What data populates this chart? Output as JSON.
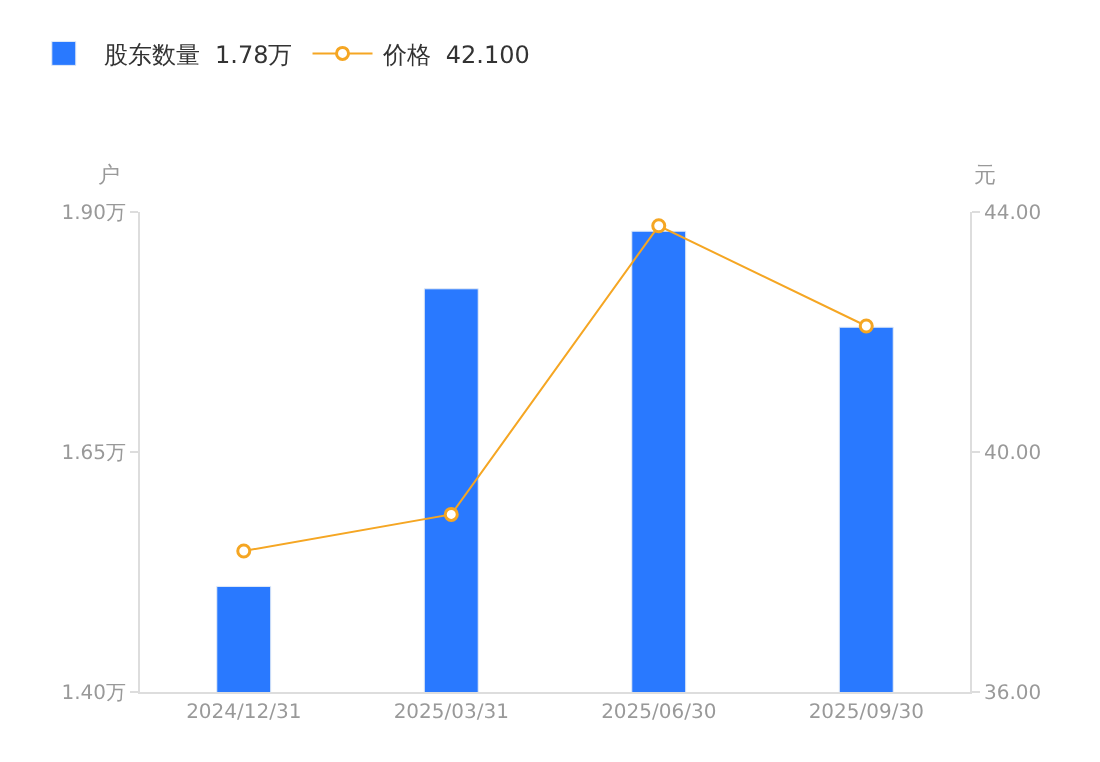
{
  "chart_data": {
    "type": "bar",
    "categories": [
      "2024/12/31",
      "2025/03/31",
      "2025/06/30",
      "2025/09/30"
    ],
    "ylabel": "户",
    "y2label": "元",
    "series": [
      {
        "name": "股东数量  1.78万",
        "color": "#2979ff",
        "values": [
          1.51,
          1.82,
          1.88,
          1.78
        ]
      },
      {
        "name": "价格  42.100",
        "type": "line",
        "axis": "y2",
        "color": "#f5a623",
        "values": [
          38.35,
          38.96,
          43.77,
          42.1
        ],
        "marker": "circle",
        "line_style": "solid"
      }
    ],
    "ylim": [
      1.4,
      1.9
    ],
    "yticks": [
      {
        "value": 1.4,
        "label": "1.40万"
      },
      {
        "value": 1.65,
        "label": "1.65万"
      },
      {
        "value": 1.9,
        "label": "1.90万"
      }
    ],
    "y2lim": [
      36,
      44
    ],
    "y2ticks": [
      {
        "value": 36,
        "label": "36.00"
      },
      {
        "value": 40,
        "label": "40.00"
      },
      {
        "value": 44,
        "label": "44.00"
      }
    ],
    "legend": "top left"
  }
}
